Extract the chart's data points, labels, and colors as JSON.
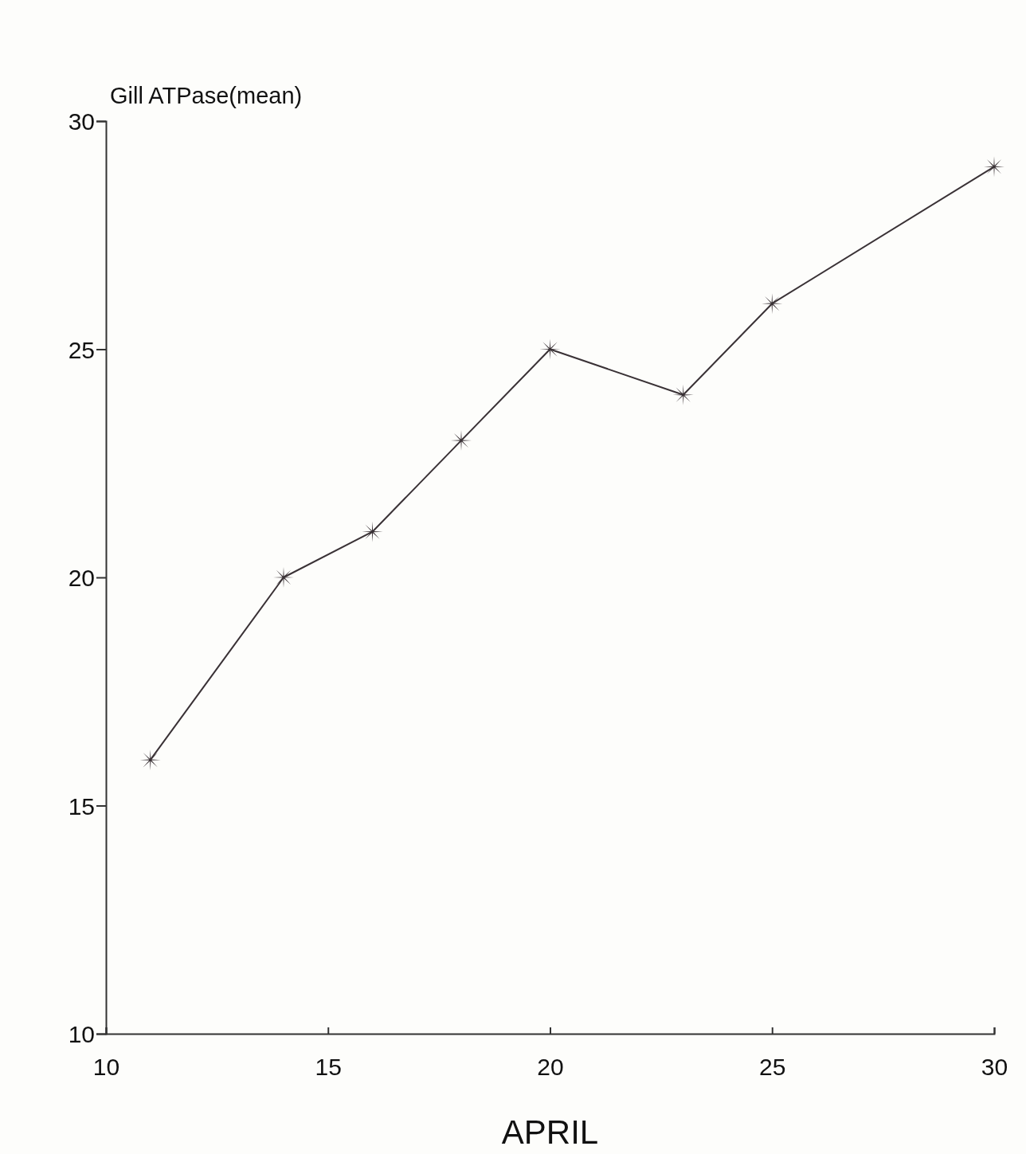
{
  "chart_data": {
    "type": "line",
    "ylabel": "Gill ATPase(mean)",
    "xlabel": "APRIL",
    "x": [
      11,
      14,
      16,
      18,
      20,
      23,
      25,
      30
    ],
    "series": [
      {
        "color": "#3a3236",
        "values": [
          16,
          20,
          21,
          23,
          25,
          24,
          26,
          29
        ]
      }
    ],
    "xlim": [
      10,
      30
    ],
    "xticks": [
      10,
      15,
      20,
      25,
      30
    ],
    "ylim": [
      10,
      30
    ],
    "yticks": [
      10,
      15,
      20,
      25,
      30
    ],
    "marker": "star",
    "line_style": "solid",
    "grid": false
  }
}
